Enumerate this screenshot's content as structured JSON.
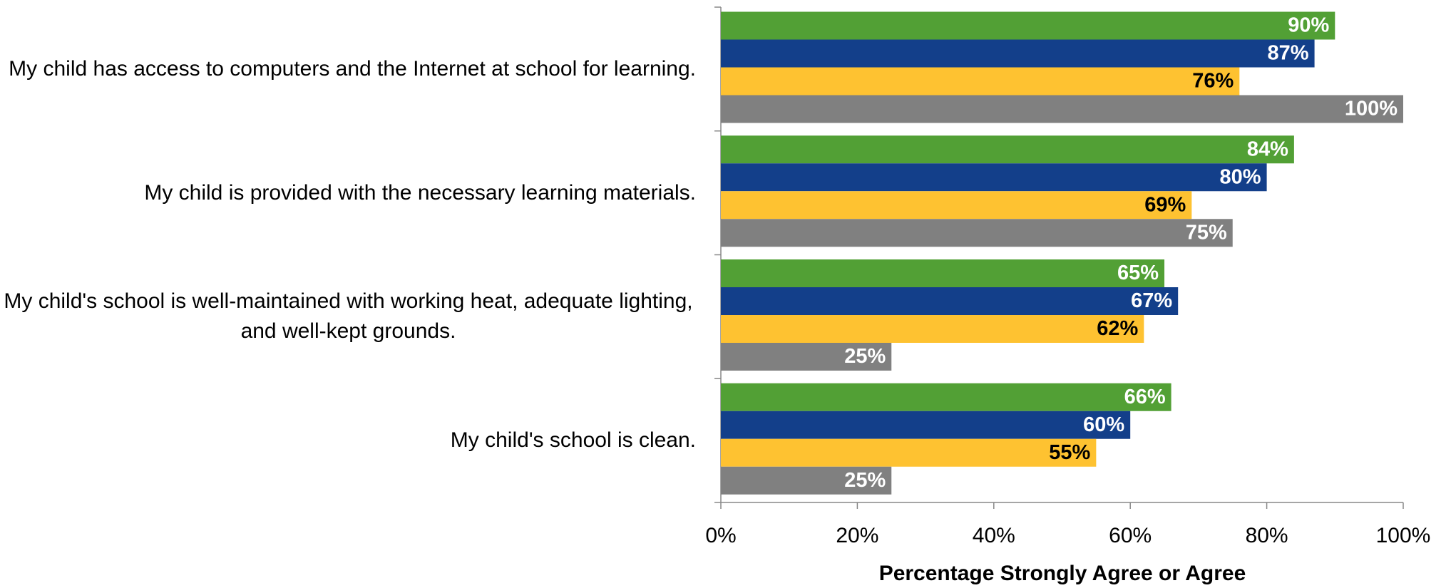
{
  "chart_data": {
    "type": "hbar",
    "categories": [
      "My child has access to computers and the Internet at school for learning.",
      "My child is provided with the necessary learning materials.",
      "My child's school is well-maintained with working heat, adequate lighting, and well-kept grounds.",
      "My child's school is clean."
    ],
    "series": [
      {
        "color": "#52a035",
        "label_color": "#ffffff",
        "values": [
          90,
          84,
          65,
          66
        ],
        "value_labels": [
          "90%",
          "84%",
          "65%",
          "66%"
        ]
      },
      {
        "color": "#133f8a",
        "label_color": "#ffffff",
        "values": [
          87,
          80,
          67,
          60
        ],
        "value_labels": [
          "87%",
          "80%",
          "67%",
          "60%"
        ]
      },
      {
        "color": "#fec231",
        "label_color": "#000000",
        "values": [
          76,
          69,
          62,
          55
        ],
        "value_labels": [
          "76%",
          "69%",
          "62%",
          "55%"
        ]
      },
      {
        "color": "#808080",
        "label_color": "#ffffff",
        "values": [
          100,
          75,
          25,
          25
        ],
        "value_labels": [
          "100%",
          "75%",
          "25%",
          "25%"
        ]
      }
    ],
    "xlabel": "Percentage Strongly Agree or Agree",
    "xlim": [
      0,
      100
    ],
    "xticks": [
      {
        "value": 0,
        "label": "0%"
      },
      {
        "value": 20,
        "label": "20%"
      },
      {
        "value": 40,
        "label": "40%"
      },
      {
        "value": 60,
        "label": "60%"
      },
      {
        "value": 80,
        "label": "80%"
      },
      {
        "value": 100,
        "label": "100%"
      }
    ]
  }
}
